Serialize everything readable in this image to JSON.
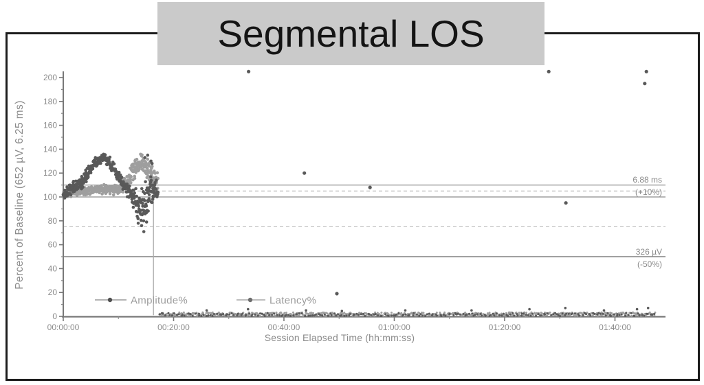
{
  "banner": {
    "title": "Segmental LOS"
  },
  "chart_data": {
    "type": "scatter",
    "title": "Segmental LOS",
    "xlabel": "Session Elapsed Time (hh:mm:ss)",
    "ylabel": "Percent of Baseline (652 µV, 6.25 ms)",
    "grid": false,
    "legend_position": "inside-bottom-left",
    "ylim": [
      0,
      210
    ],
    "xlim_minutes": [
      0,
      109
    ],
    "y_ticks": [
      0,
      20,
      40,
      60,
      80,
      100,
      120,
      140,
      160,
      180,
      200
    ],
    "y_minor_ticks": [
      10,
      30,
      50,
      70,
      90,
      110,
      130,
      150,
      170,
      190
    ],
    "x_ticks": [
      {
        "t": 0,
        "label": "00:00:00"
      },
      {
        "t": 20,
        "label": "00:20:00"
      },
      {
        "t": 40,
        "label": "00:40:00"
      },
      {
        "t": 60,
        "label": "01:00:00"
      },
      {
        "t": 80,
        "label": "01:20:00"
      },
      {
        "t": 100,
        "label": "01:40:00"
      }
    ],
    "x_minor_ticks": [
      10,
      30,
      50,
      70,
      90
    ],
    "reference_lines": [
      {
        "value": 110,
        "style": "solid",
        "label": "6.88 ms"
      },
      {
        "value": 105,
        "style": "dashed",
        "label": "(+10%)"
      },
      {
        "value": 100,
        "style": "solid",
        "label": ""
      },
      {
        "value": 75,
        "style": "dashed",
        "label": ""
      },
      {
        "value": 50,
        "style": "solid",
        "label": "326 µV",
        "label2": "(-50%)"
      }
    ],
    "seed": 1337,
    "series": [
      {
        "name": "Amplitude%",
        "color": "#595959",
        "cluster_density": 24,
        "cluster_trend": [
          [
            0,
            102,
            5
          ],
          [
            0.8,
            105,
            6
          ],
          [
            1.6,
            108,
            6
          ],
          [
            2.5,
            110,
            7
          ],
          [
            3.2,
            112,
            7
          ],
          [
            4,
            117,
            7
          ],
          [
            4.8,
            123,
            6
          ],
          [
            5.6,
            128,
            5
          ],
          [
            6.4,
            131,
            5
          ],
          [
            7.4,
            132,
            5
          ],
          [
            8.2,
            130,
            5
          ],
          [
            9,
            125,
            6
          ],
          [
            9.8,
            118,
            6
          ],
          [
            10.6,
            112,
            6
          ],
          [
            11.4,
            108,
            7
          ],
          [
            12,
            105,
            8
          ],
          [
            12.6,
            100,
            10
          ],
          [
            13.2,
            96,
            13
          ],
          [
            13.8,
            92,
            15
          ],
          [
            14.4,
            93,
            17
          ],
          [
            15,
            97,
            18
          ],
          [
            15.6,
            103,
            16
          ],
          [
            16.2,
            106,
            13
          ],
          [
            16.8,
            104,
            11
          ],
          [
            17.2,
            102,
            10
          ]
        ],
        "cluster_extra": [
          [
            13.6,
            78
          ],
          [
            14.2,
            76
          ],
          [
            14.6,
            71
          ],
          [
            15.1,
            79
          ],
          [
            14.8,
            133
          ],
          [
            15.3,
            135
          ],
          [
            15.9,
            130
          ],
          [
            16.1,
            128
          ]
        ],
        "band": {
          "t0": 17.5,
          "t1": 107.3,
          "mean": 1.5,
          "spread": 1.3,
          "density": 2.6
        },
        "band_spikes": [
          [
            26,
            5
          ],
          [
            33.5,
            6
          ],
          [
            44,
            5
          ],
          [
            50.5,
            4.5
          ],
          [
            62,
            5
          ],
          [
            74,
            5
          ],
          [
            84.5,
            6
          ],
          [
            91,
            7
          ],
          [
            98,
            5
          ],
          [
            104,
            6
          ],
          [
            106,
            7
          ]
        ],
        "outliers": [
          [
            33.6,
            205
          ],
          [
            43.7,
            120
          ],
          [
            49.6,
            19
          ],
          [
            55.6,
            108
          ],
          [
            88,
            205
          ],
          [
            91.1,
            95
          ],
          [
            105.4,
            195
          ],
          [
            105.7,
            205
          ]
        ]
      },
      {
        "name": "Latency%",
        "color": "#9e9e9e",
        "cluster_density": 24,
        "cluster_trend": [
          [
            0,
            103,
            4
          ],
          [
            2,
            104,
            4
          ],
          [
            4,
            105,
            4
          ],
          [
            6,
            106,
            4
          ],
          [
            8,
            107,
            5
          ],
          [
            9.5,
            106,
            5
          ],
          [
            10.5,
            108,
            6
          ],
          [
            11.2,
            111,
            7
          ],
          [
            12,
            116,
            8
          ],
          [
            12.8,
            122,
            9
          ],
          [
            13.6,
            128,
            8
          ],
          [
            14.4,
            130,
            7
          ],
          [
            15,
            126,
            9
          ],
          [
            15.6,
            121,
            11
          ],
          [
            16.2,
            117,
            12
          ],
          [
            16.8,
            112,
            13
          ],
          [
            17.2,
            107,
            12
          ]
        ],
        "cluster_extra": [],
        "band": {
          "t0": 17.4,
          "t1": 107.3,
          "mean": 1.8,
          "spread": 1.5,
          "density": 7
        },
        "band_spikes": [],
        "outliers": [],
        "drop_line": {
          "t": 16.35,
          "from": 102,
          "to": 1
        }
      }
    ]
  }
}
